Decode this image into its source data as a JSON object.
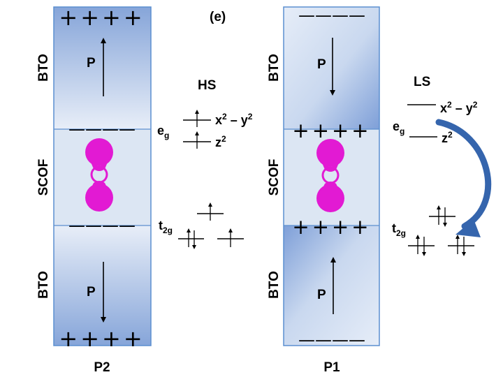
{
  "panel_label": "(e)",
  "left": {
    "caption": "P2",
    "layers": [
      "BTO",
      "SCOF",
      "BTO"
    ],
    "polarization_label": "P",
    "top_charges": "++++",
    "mid_top_charges": "————",
    "mid_bottom_charges": "————",
    "bottom_charges": "++++"
  },
  "right": {
    "caption": "P1",
    "layers": [
      "BTO",
      "SCOF",
      "BTO"
    ],
    "polarization_label": "P",
    "top_charges": "————",
    "mid_top_charges": "++++",
    "mid_bottom_charges": "++++",
    "bottom_charges": "————"
  },
  "hs": {
    "title": "HS",
    "eg": "e",
    "eg_sub": "g",
    "t2g": "t",
    "t2g_sub": "2g",
    "x2y2_a": "x",
    "x2y2_b": " – y",
    "sup": "2",
    "z2": "z"
  },
  "ls": {
    "title": "LS",
    "eg": "e",
    "eg_sub": "g",
    "t2g": "t",
    "t2g_sub": "2g",
    "x2y2_a": "x",
    "x2y2_b": " – y",
    "sup": "2",
    "z2": "z"
  },
  "colors": {
    "bto_dark": "#7f9fd6",
    "bto_light": "#e4ebf7",
    "scof_fill": "#dde7f4",
    "border": "#5b8fd0",
    "orbital": "#e21ad3",
    "arrow": "#3565ad"
  }
}
